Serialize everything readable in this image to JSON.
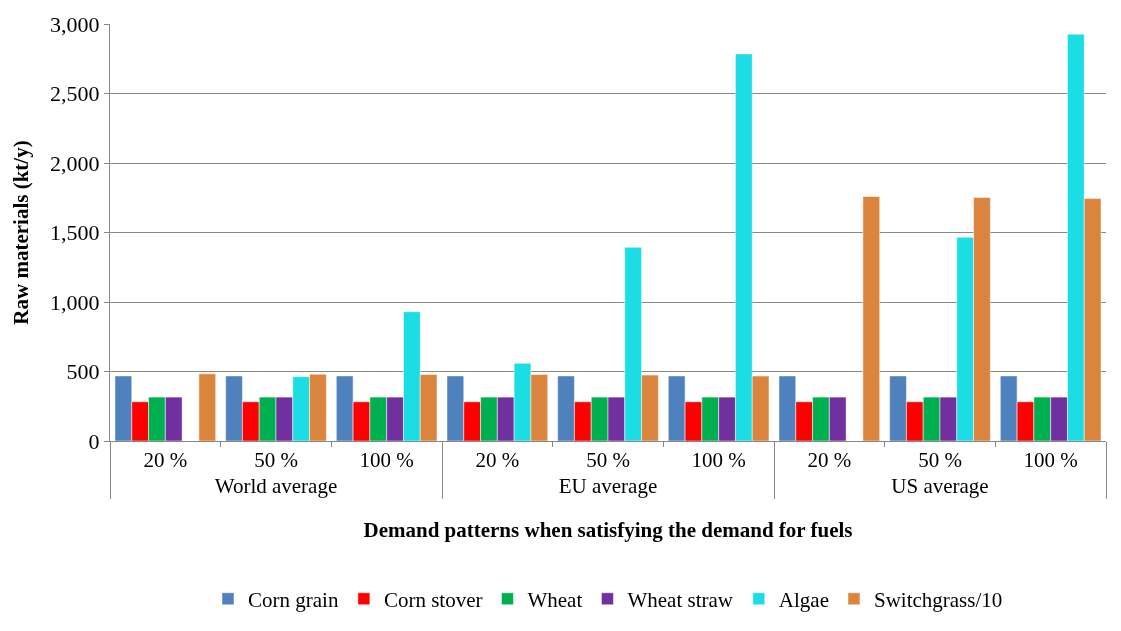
{
  "chart_data": {
    "type": "bar",
    "xlabel": "Demand patterns when satisfying the demand for fuels",
    "ylabel": "Raw materials (kt/y)",
    "categories": [
      "20 %",
      "50 %",
      "100 %",
      "20 %",
      "50 %",
      "100 %",
      "20 %",
      "50 %",
      "100 %"
    ],
    "annotations": [
      "World average",
      "EU average",
      "US average"
    ],
    "series": [
      {
        "name": "Corn grain",
        "color": "#4f81bd",
        "values": [
          468,
          468,
          468,
          468,
          468,
          468,
          468,
          468,
          468
        ]
      },
      {
        "name": "Corn stover",
        "color": "#ff0000",
        "values": [
          282,
          282,
          282,
          282,
          282,
          282,
          282,
          282,
          282
        ]
      },
      {
        "name": "Wheat",
        "color": "#00b050",
        "values": [
          316,
          316,
          316,
          316,
          316,
          316,
          316,
          316,
          316
        ]
      },
      {
        "name": "Wheat straw",
        "color": "#7030a0",
        "values": [
          316,
          316,
          316,
          316,
          316,
          316,
          316,
          316,
          316
        ]
      },
      {
        "name": "Algae",
        "color": "#1cdce4",
        "values": [
          null,
          463,
          930,
          559,
          1393,
          2785,
          null,
          1466,
          2927
        ]
      },
      {
        "name": "Switchgrass/10",
        "color": "#db843d",
        "values": [
          483,
          480,
          478,
          478,
          474,
          467,
          1759,
          1752,
          1744
        ]
      }
    ],
    "ylim": [
      0,
      3000
    ],
    "yticks": [
      {
        "value": 0,
        "label": "0"
      },
      {
        "value": 500,
        "label": "500"
      },
      {
        "value": 1000,
        "label": "1,000"
      },
      {
        "value": 1500,
        "label": "1,500"
      },
      {
        "value": 2000,
        "label": "2,000"
      },
      {
        "value": 2500,
        "label": "2,500"
      },
      {
        "value": 3000,
        "label": "3,000"
      }
    ],
    "grid": "y",
    "legend": "bottom"
  }
}
